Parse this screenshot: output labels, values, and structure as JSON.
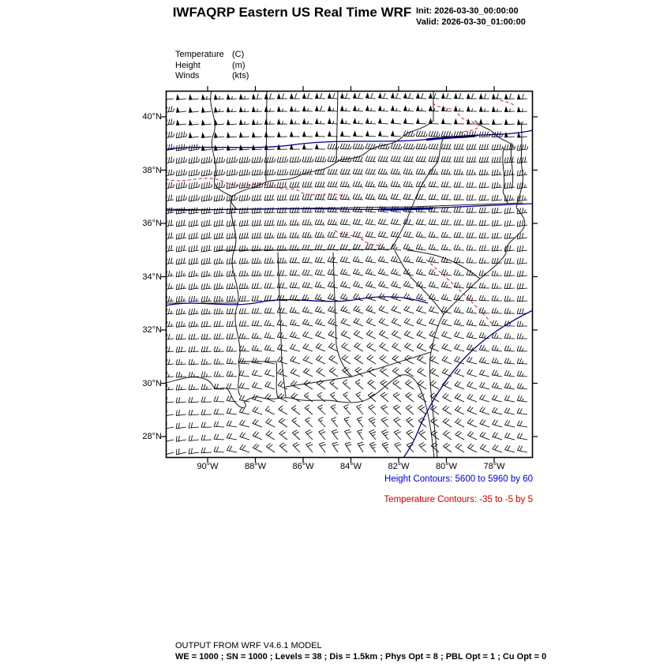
{
  "header": {
    "title": "IWFAQRP Eastern US Real Time WRF",
    "init_label": "Init: 2026-03-30_00:00:00",
    "valid_label": "Valid: 2026-03-30_01:00:00"
  },
  "legend": {
    "rows": [
      {
        "name": "Temperature",
        "unit": "(C)"
      },
      {
        "name": "Height",
        "unit": "(m)"
      },
      {
        "name": "Winds",
        "unit": "(kts)"
      }
    ]
  },
  "map": {
    "lat_ticks": [
      "40°N",
      "38°N",
      "36°N",
      "34°N",
      "32°N",
      "30°N",
      "28°N"
    ],
    "lon_ticks": [
      "90°W",
      "88°W",
      "86°W",
      "84°W",
      "82°W",
      "80°W",
      "78°W"
    ],
    "colors": {
      "height_line": "#00008B",
      "height_text": "#0000CD",
      "temp_line": "#CC3333",
      "temp_text": "#CC0000",
      "barbs": "#000000",
      "borders": "#1a1a1a"
    }
  },
  "captions": {
    "height": "Height Contours: 5600 to 5960 by 60",
    "temperature": "Temperature Contours: -35 to -5 by 5"
  },
  "footer": {
    "line1": "OUTPUT FROM WRF V4.6.1 MODEL",
    "line2": "WE = 1000 ; SN = 1000 ; Levels = 38 ; Dis = 1.5km ; Phys Opt = 8 ; PBL Opt = 1 ; Cu Opt = 0"
  },
  "chart_data": {
    "type": "map",
    "title": "IWFAQRP Eastern US Real Time WRF",
    "init_time": "2026-03-30_00:00:00",
    "valid_time": "2026-03-30_01:00:00",
    "region": "Eastern US",
    "x_axis": {
      "label": "longitude",
      "ticks": [
        "90°W",
        "88°W",
        "86°W",
        "84°W",
        "82°W",
        "80°W",
        "78°W"
      ]
    },
    "y_axis": {
      "label": "latitude",
      "ticks": [
        "40°N",
        "38°N",
        "36°N",
        "34°N",
        "32°N",
        "30°N",
        "28°N"
      ]
    },
    "fields": [
      {
        "name": "Temperature",
        "units": "C",
        "render": "red dashed contours",
        "contour_min": -35,
        "contour_max": -5,
        "contour_interval": 5
      },
      {
        "name": "Height",
        "units": "m",
        "render": "blue solid contours",
        "contour_min": 5600,
        "contour_max": 5960,
        "contour_interval": 60
      },
      {
        "name": "Winds",
        "units": "kts",
        "render": "wind barbs"
      }
    ],
    "model_footer": [
      "OUTPUT FROM WRF V4.6.1 MODEL",
      "WE = 1000 ; SN = 1000 ; Levels = 38 ; Dis = 1.5km ; Phys Opt = 8 ; PBL Opt = 1 ; Cu Opt = 0"
    ]
  }
}
